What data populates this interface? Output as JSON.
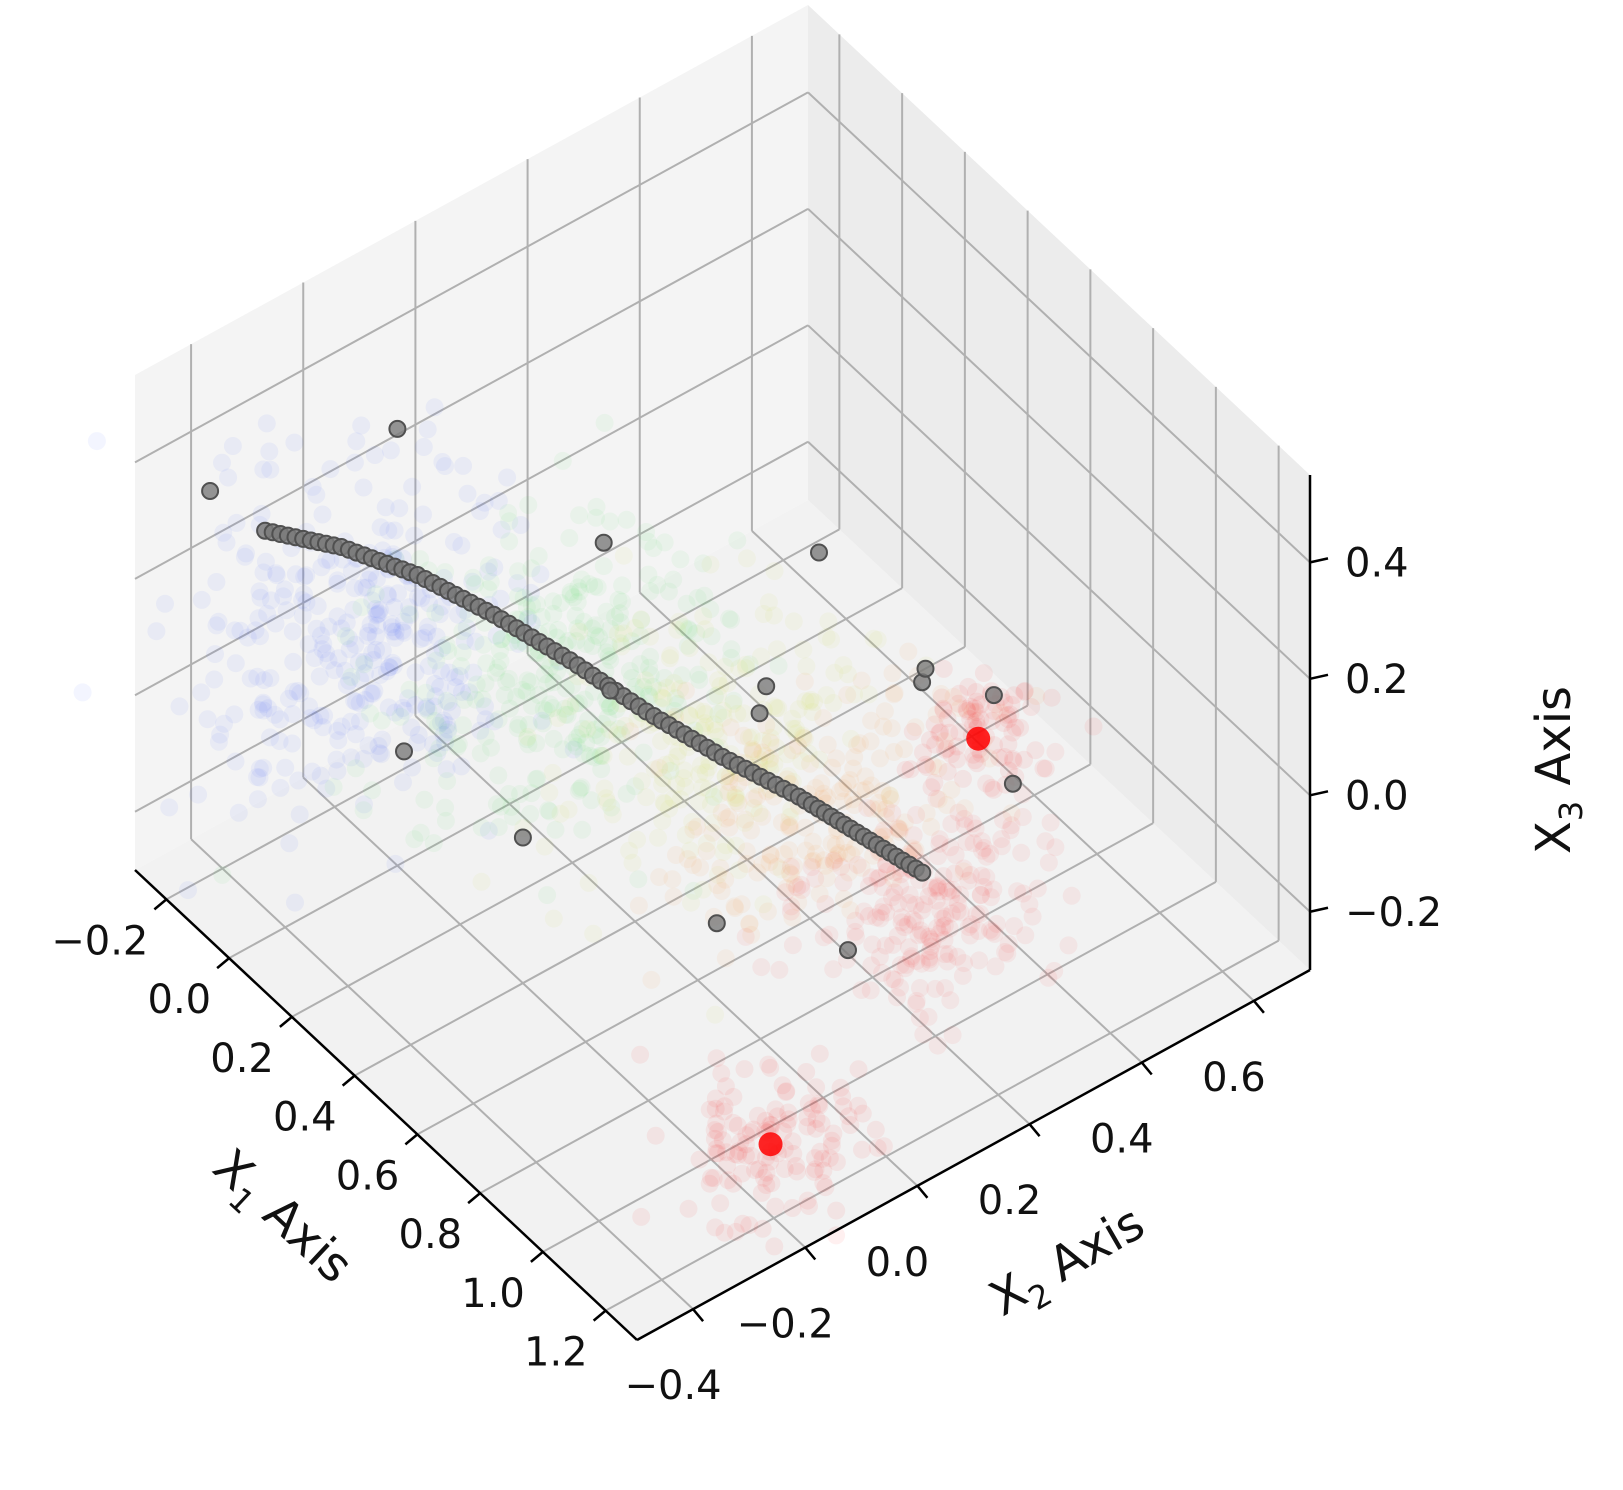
{
  "chart_data": {
    "type": "scatter",
    "projection": "3d",
    "title": "",
    "grid": true,
    "axes": {
      "x1": {
        "label": "X",
        "subscript": "1",
        "suffix": " Axis",
        "ticks": [
          -0.2,
          0.0,
          0.2,
          0.4,
          0.6,
          0.8,
          1.0,
          1.2
        ],
        "tick_labels": [
          "−0.2",
          "0.0",
          "0.2",
          "0.4",
          "0.6",
          "0.8",
          "1.0",
          "1.2"
        ],
        "range": [
          -0.3,
          1.3
        ]
      },
      "x2": {
        "label": "X",
        "subscript": "2",
        "suffix": " Axis",
        "ticks": [
          -0.4,
          -0.2,
          0.0,
          0.2,
          0.4,
          0.6
        ],
        "tick_labels": [
          "−0.4",
          "−0.2",
          "0.0",
          "0.2",
          "0.4",
          "0.6"
        ],
        "range": [
          -0.5,
          0.7
        ]
      },
      "x3": {
        "label": "X",
        "subscript": "3",
        "suffix": " Axis",
        "ticks": [
          -0.2,
          0.0,
          0.2,
          0.4
        ],
        "tick_labels": [
          "−0.2",
          "0.0",
          "0.2",
          "0.4"
        ],
        "range": [
          -0.3,
          0.55
        ]
      }
    },
    "colors": {
      "low": "#2244ff",
      "mid": "#33ee33",
      "high": "#ff0000",
      "trajectory": "#7a7a7a",
      "trajectory_edge": "#505050",
      "pane": "#f2f2f2",
      "grid": "#b0b0b0"
    },
    "clouds": [
      {
        "name": "",
        "color": "#3355ff",
        "center": [
          0.15,
          -0.35,
          0.25
        ],
        "spread": [
          0.15,
          0.12,
          0.12
        ],
        "count": 340
      },
      {
        "name": "",
        "color": "#44dd55",
        "center": [
          0.35,
          -0.1,
          0.15
        ],
        "spread": [
          0.14,
          0.14,
          0.1
        ],
        "count": 300
      },
      {
        "name": "",
        "color": "#c8e033",
        "center": [
          0.55,
          0.05,
          0.05
        ],
        "spread": [
          0.12,
          0.12,
          0.08
        ],
        "count": 220
      },
      {
        "name": "",
        "color": "#ff8a20",
        "center": [
          0.7,
          0.15,
          -0.05
        ],
        "spread": [
          0.1,
          0.12,
          0.07
        ],
        "count": 200
      },
      {
        "name": "",
        "color": "#ff1a1a",
        "center": [
          0.9,
          0.25,
          -0.15
        ],
        "spread": [
          0.1,
          0.1,
          0.06
        ],
        "count": 220
      },
      {
        "name": "",
        "color": "#ff0000",
        "center": [
          1.1,
          -0.15,
          -0.25
        ],
        "spread": [
          0.08,
          0.07,
          0.04
        ],
        "count": 130
      },
      {
        "name": "",
        "color": "#ff0000",
        "center": [
          0.6,
          0.5,
          -0.15
        ],
        "spread": [
          0.06,
          0.05,
          0.03
        ],
        "count": 90
      }
    ],
    "trajectory_path": [
      [
        -0.1,
        -0.38,
        0.32
      ],
      [
        0.0,
        -0.3,
        0.3
      ],
      [
        0.1,
        -0.22,
        0.26
      ],
      [
        0.2,
        -0.14,
        0.2
      ],
      [
        0.3,
        -0.06,
        0.13
      ],
      [
        0.4,
        0.02,
        0.05
      ],
      [
        0.5,
        0.1,
        -0.02
      ],
      [
        0.6,
        0.18,
        -0.08
      ],
      [
        0.7,
        0.24,
        -0.13
      ],
      [
        0.8,
        0.3,
        -0.18
      ]
    ],
    "trajectory_outliers": [
      [
        0.0,
        -0.2,
        0.45
      ],
      [
        -0.15,
        -0.45,
        0.4
      ],
      [
        0.3,
        0.0,
        0.3
      ],
      [
        0.2,
        -0.3,
        0.05
      ],
      [
        0.45,
        0.3,
        0.2
      ],
      [
        0.4,
        -0.2,
        -0.05
      ],
      [
        0.55,
        0.15,
        0.1
      ],
      [
        0.6,
        0.4,
        0.0
      ],
      [
        0.7,
        0.35,
        0.1
      ],
      [
        0.75,
        -0.05,
        -0.1
      ],
      [
        0.9,
        0.1,
        -0.15
      ],
      [
        0.5,
        -0.1,
        0.2
      ],
      [
        0.35,
        0.25,
        -0.1
      ],
      [
        0.8,
        0.45,
        -0.1
      ],
      [
        0.65,
        0.5,
        -0.05
      ]
    ]
  }
}
